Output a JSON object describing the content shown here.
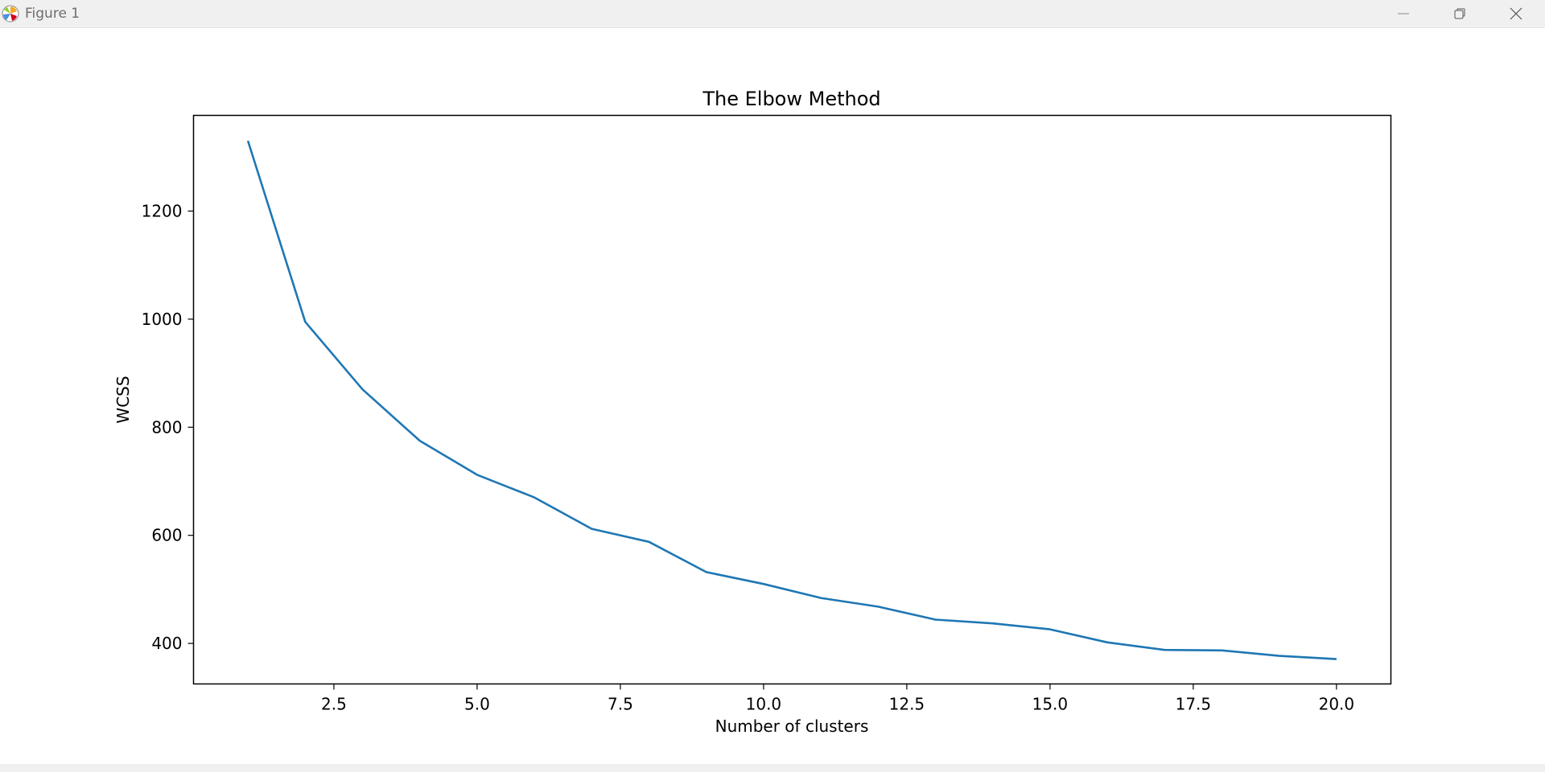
{
  "window": {
    "title": "Figure 1",
    "app_icon": "matplotlib-icon",
    "controls": [
      "minimize-icon",
      "restore-icon",
      "close-icon"
    ]
  },
  "chart_data": {
    "type": "line",
    "title": "The Elbow Method",
    "xlabel": "Number of clusters",
    "ylabel": "WCSS",
    "x": [
      1,
      2,
      3,
      4,
      5,
      6,
      7,
      8,
      9,
      10,
      11,
      12,
      13,
      14,
      15,
      16,
      17,
      18,
      19,
      20
    ],
    "series": [
      {
        "values": [
          1330,
          995,
          870,
          775,
          712,
          670,
          612,
          588,
          532,
          510,
          484,
          468,
          444,
          437,
          426,
          402,
          388,
          387,
          377,
          371
        ],
        "color": "#1f77b4"
      }
    ],
    "xlim": [
      0.05,
      20.95
    ],
    "ylim": [
      325,
      1377
    ],
    "xticks": [
      "2.5",
      "5.0",
      "7.5",
      "10.0",
      "12.5",
      "15.0",
      "17.5",
      "20.0"
    ],
    "yticks": [
      "400",
      "600",
      "800",
      "1000",
      "1200"
    ],
    "grid": false,
    "legend": false
  }
}
